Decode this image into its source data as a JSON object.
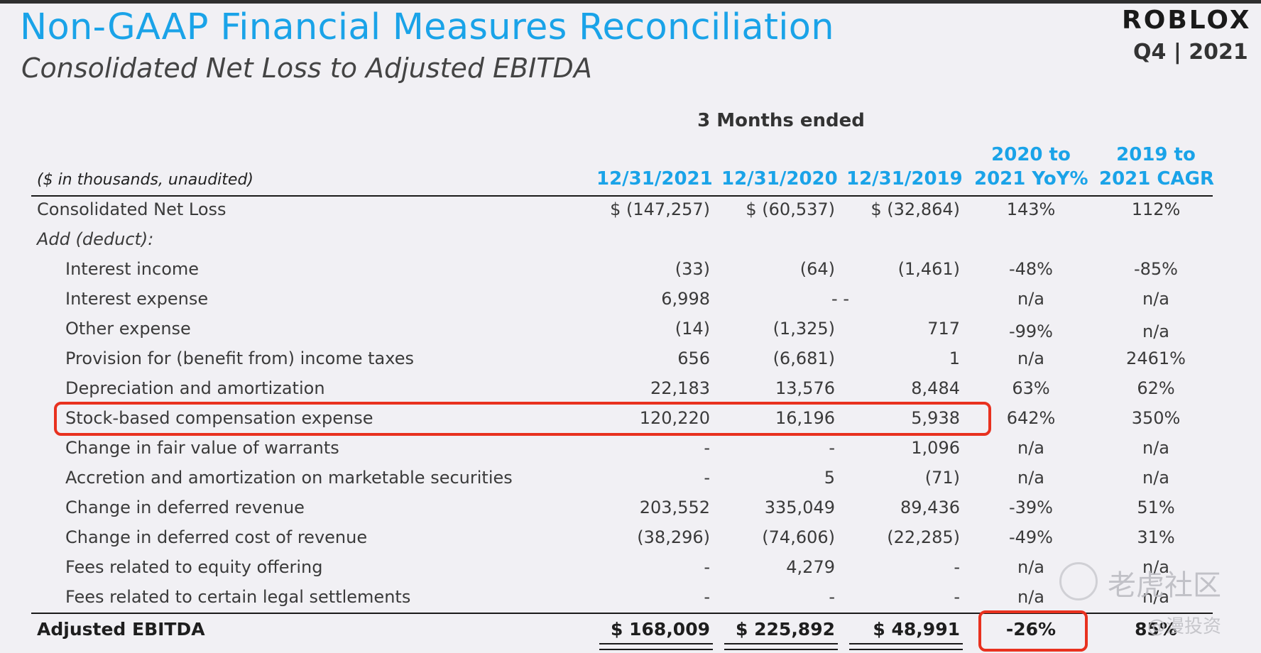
{
  "header": {
    "title": "Non-GAAP Financial Measures Reconciliation",
    "subtitle": "Consolidated Net Loss to Adjusted EBITDA",
    "logo": "ROBLOX",
    "period": "Q4 | 2021"
  },
  "table": {
    "group_label": "3 Months ended",
    "units_note": "($ in thousands, unaudited)",
    "columns": {
      "c2021": "12/31/2021",
      "c2020": "12/31/2020",
      "c2019": "12/31/2019",
      "yoy_line1": "2020 to",
      "yoy_line2": "2021 YoY%",
      "cagr_line1": "2019 to",
      "cagr_line2": "2021 CAGR"
    },
    "rows": [
      {
        "label": "Consolidated Net Loss",
        "v2021": "$ (147,257)",
        "v2020": "$ (60,537)",
        "v2019": "$ (32,864)",
        "yoy": "143%",
        "cagr": "112%"
      },
      {
        "label": "Add (deduct):",
        "v2021": "",
        "v2020": "",
        "v2019": "",
        "yoy": "",
        "cagr": ""
      },
      {
        "label": "Interest income",
        "v2021": "(33)",
        "v2020": "(64)",
        "v2019": "(1,461)",
        "yoy": "-48%",
        "cagr": "-85%"
      },
      {
        "label": "Interest expense",
        "v2021": "6,998",
        "v2020": "- -",
        "v2019": "",
        "yoy": "n/a",
        "cagr": "n/a"
      },
      {
        "label": "Other expense",
        "v2021": "(14)",
        "v2020": "(1,325)",
        "v2019": "717",
        "yoy": "-99%",
        "cagr": "n/a"
      },
      {
        "label": "Provision for (benefit from) income taxes",
        "v2021": "656",
        "v2020": "(6,681)",
        "v2019": "1",
        "yoy": "n/a",
        "cagr": "2461%"
      },
      {
        "label": "Depreciation and amortization",
        "v2021": "22,183",
        "v2020": "13,576",
        "v2019": "8,484",
        "yoy": "63%",
        "cagr": "62%"
      },
      {
        "label": "Stock-based compensation expense",
        "v2021": "120,220",
        "v2020": "16,196",
        "v2019": "5,938",
        "yoy": "642%",
        "cagr": "350%"
      },
      {
        "label": "Change in fair value of warrants",
        "v2021": "-",
        "v2020": "-",
        "v2019": "1,096",
        "yoy": "n/a",
        "cagr": "n/a"
      },
      {
        "label": "Accretion and amortization on marketable securities",
        "v2021": "-",
        "v2020": "5",
        "v2019": "(71)",
        "yoy": "n/a",
        "cagr": "n/a"
      },
      {
        "label": "Change in deferred revenue",
        "v2021": "203,552",
        "v2020": "335,049",
        "v2019": "89,436",
        "yoy": "-39%",
        "cagr": "51%"
      },
      {
        "label": "Change in deferred cost of revenue",
        "v2021": "(38,296)",
        "v2020": "(74,606)",
        "v2019": "(22,285)",
        "yoy": "-49%",
        "cagr": "31%"
      },
      {
        "label": "Fees related to equity offering",
        "v2021": "-",
        "v2020": "4,279",
        "v2019": "-",
        "yoy": "n/a",
        "cagr": "n/a"
      },
      {
        "label": "Fees related to certain legal settlements",
        "v2021": "-",
        "v2020": "-",
        "v2019": "-",
        "yoy": "n/a",
        "cagr": "n/a"
      }
    ],
    "total": {
      "label": "Adjusted EBITDA",
      "v2021": "$ 168,009",
      "v2020": "$ 225,892",
      "v2019": "$ 48,991",
      "yoy": "-26%",
      "cagr": "85%"
    }
  },
  "watermark": {
    "main": "老虎社区",
    "sub": "@漫投资"
  },
  "colors": {
    "accent": "#1aa3e8",
    "highlight": "#e8311f",
    "background": "#f1f0f4"
  }
}
